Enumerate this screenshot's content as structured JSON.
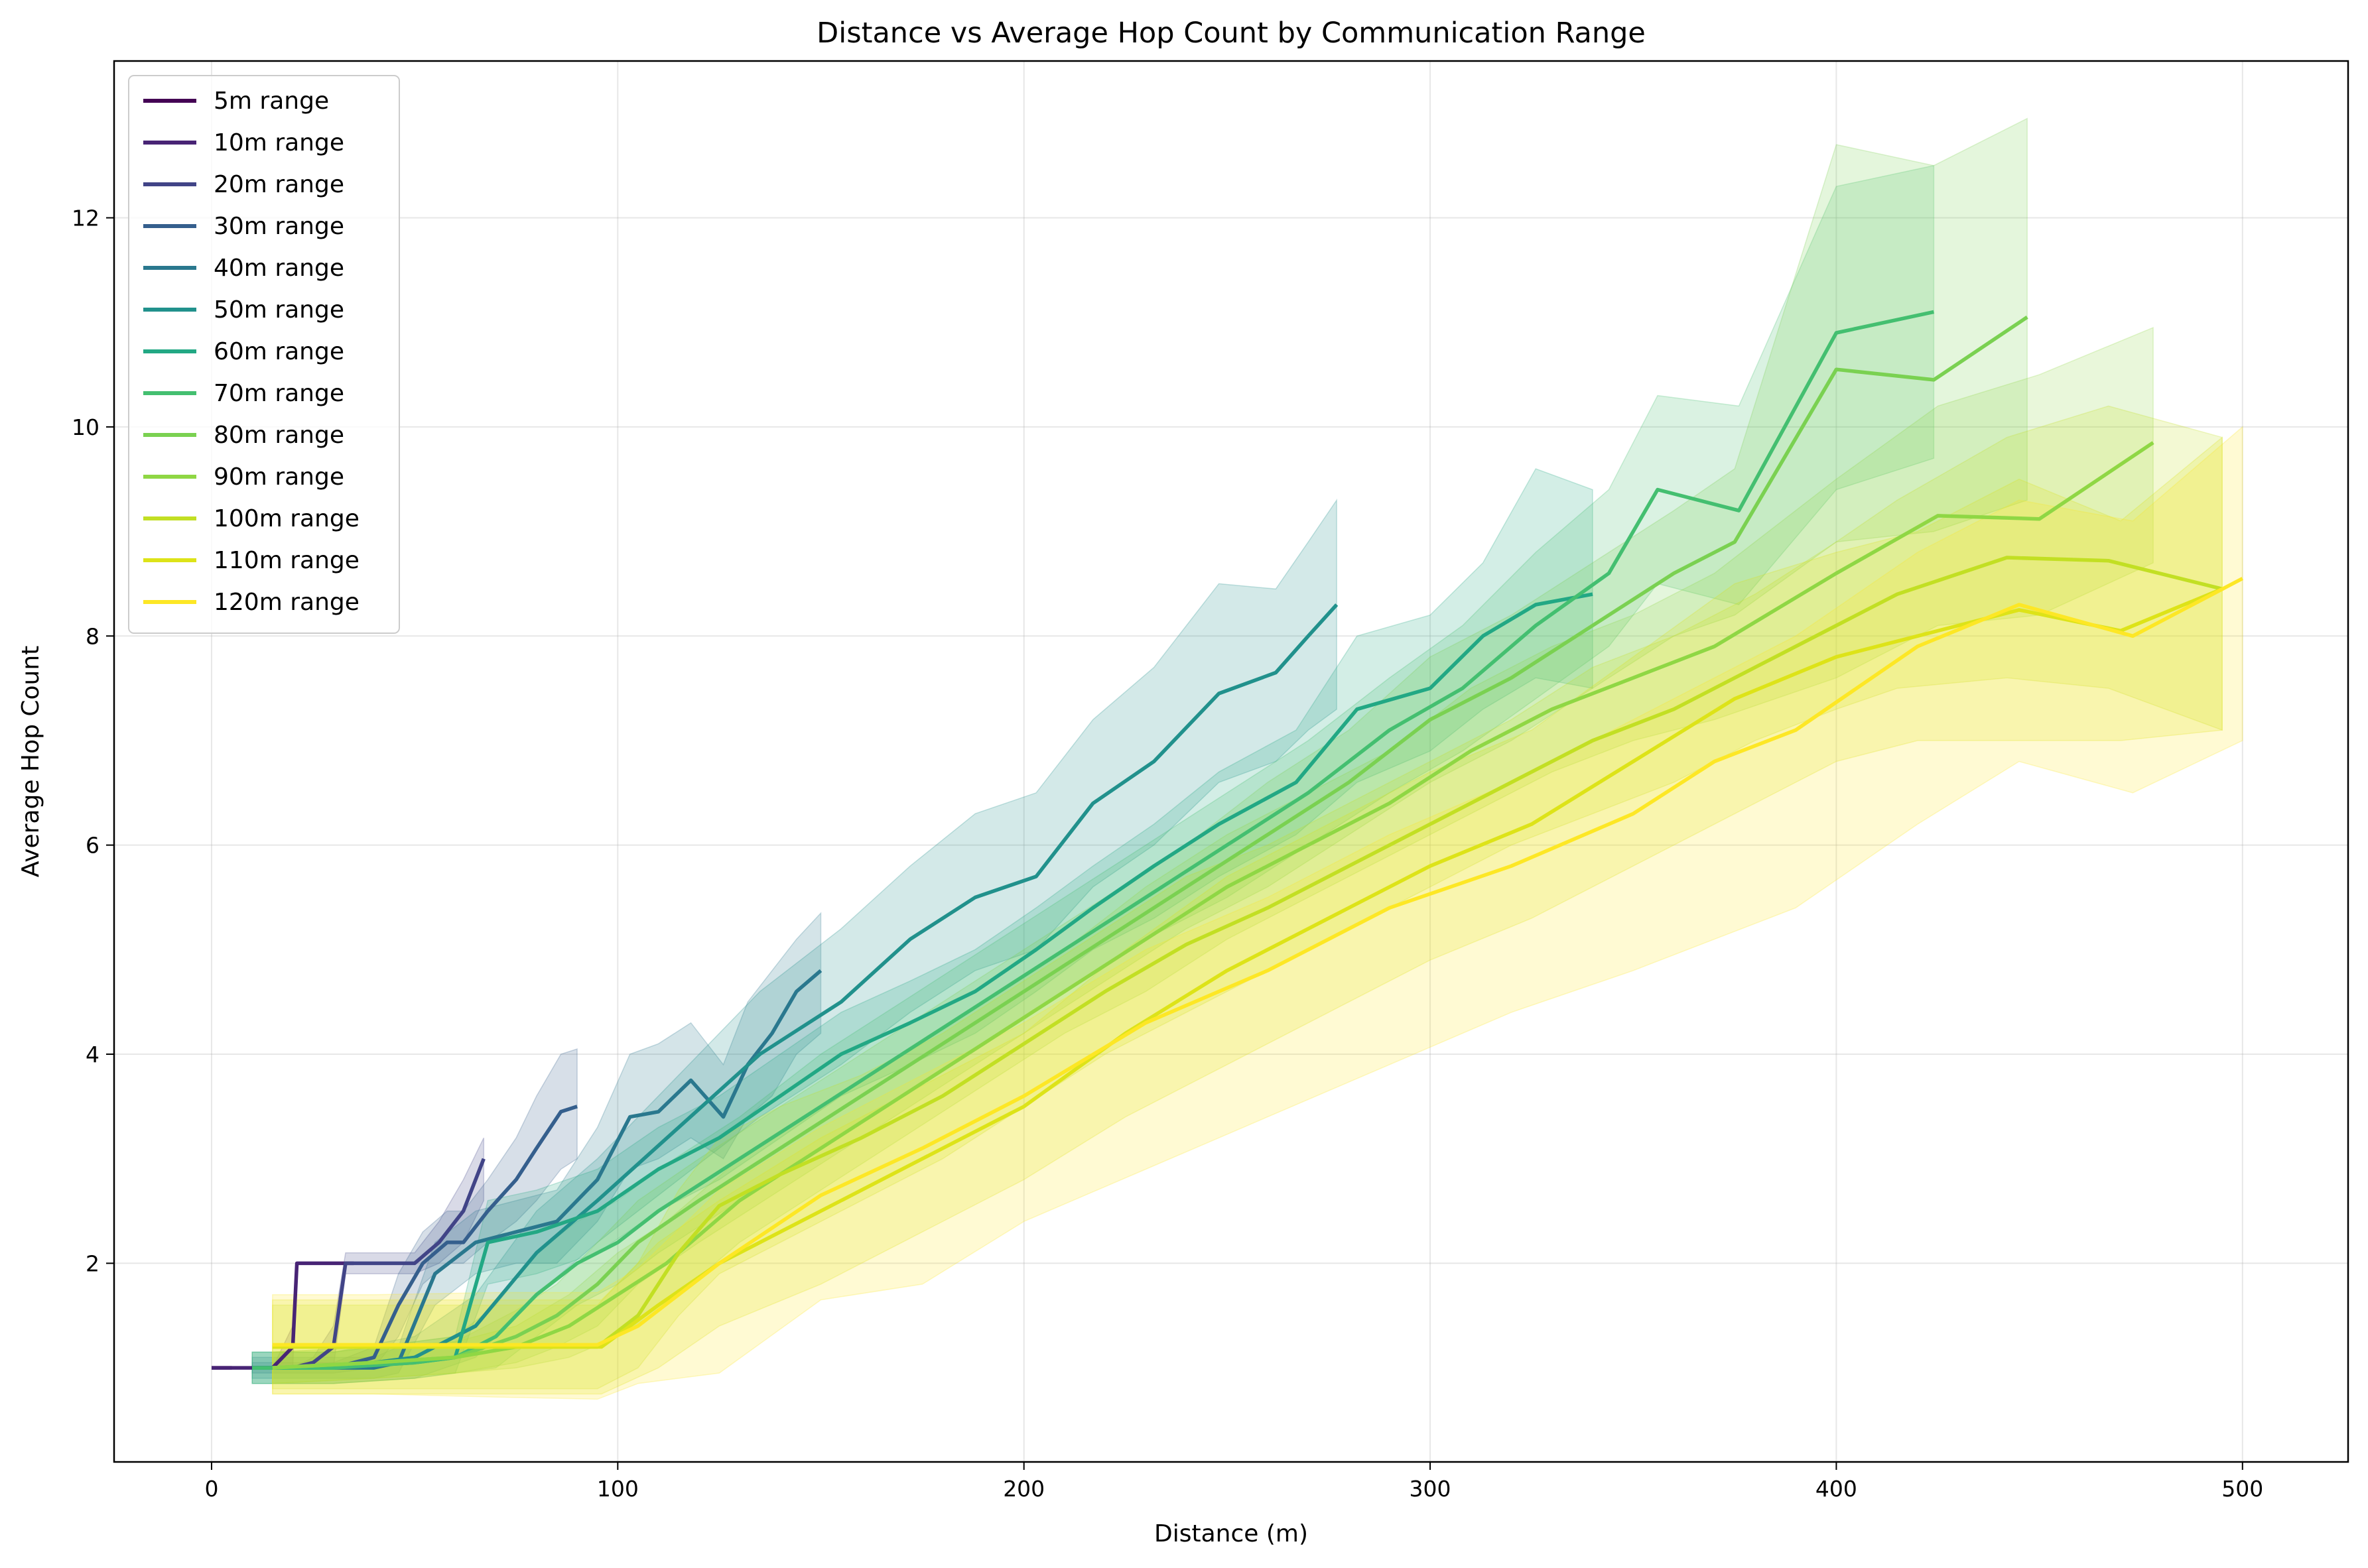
{
  "chart_data": {
    "type": "line",
    "title": "Distance vs Average Hop Count by Communication Range",
    "xlabel": "Distance (m)",
    "ylabel": "Average Hop Count",
    "xlim": [
      -24,
      526
    ],
    "ylim": [
      0.1,
      13.5
    ],
    "xticks": [
      0,
      100,
      200,
      300,
      400,
      500
    ],
    "yticks": [
      2,
      4,
      6,
      8,
      10,
      12
    ],
    "grid": true,
    "legend_position": "top-left",
    "series": [
      {
        "name": "5m range",
        "color": "#440154",
        "x": [
          0,
          5
        ],
        "y": [
          1,
          1
        ],
        "lower": [
          1,
          1
        ],
        "upper": [
          1,
          1
        ]
      },
      {
        "name": "10m range",
        "color": "#482475",
        "x": [
          0,
          5,
          10,
          15,
          20,
          21,
          25,
          30,
          35
        ],
        "y": [
          1,
          1,
          1,
          1,
          1.2,
          2,
          2,
          2,
          2
        ],
        "lower": [
          1,
          1,
          1,
          1,
          1,
          2,
          2,
          2,
          2
        ],
        "upper": [
          1,
          1,
          1,
          1,
          1.4,
          2,
          2,
          2,
          2
        ]
      },
      {
        "name": "20m range",
        "color": "#414487",
        "x": [
          10,
          15,
          20,
          25,
          30,
          33,
          38,
          44,
          50,
          56,
          62,
          67
        ],
        "y": [
          1,
          1,
          1,
          1.05,
          1.2,
          2,
          2,
          2,
          2,
          2.2,
          2.5,
          3
        ],
        "lower": [
          1,
          1,
          1,
          1,
          1,
          1.9,
          1.9,
          1.9,
          1.9,
          2,
          2.2,
          2.6
        ],
        "upper": [
          1,
          1,
          1,
          1.1,
          1.4,
          2.1,
          2.1,
          2.1,
          2.1,
          2.4,
          2.8,
          3.2
        ]
      },
      {
        "name": "30m range",
        "color": "#355f8d",
        "x": [
          10,
          20,
          30,
          40,
          46,
          52,
          58,
          62,
          68,
          75,
          80,
          86,
          90
        ],
        "y": [
          1,
          1,
          1,
          1.1,
          1.6,
          2,
          2.2,
          2.2,
          2.5,
          2.8,
          3.1,
          3.45,
          3.5
        ],
        "lower": [
          0.95,
          0.95,
          0.95,
          1,
          1.3,
          1.8,
          2,
          2,
          2.2,
          2.4,
          2.6,
          2.9,
          3
        ],
        "upper": [
          1.05,
          1.05,
          1.05,
          1.2,
          1.9,
          2.3,
          2.5,
          2.5,
          2.8,
          3.2,
          3.6,
          4,
          4.05
        ]
      },
      {
        "name": "40m range",
        "color": "#2a788e",
        "x": [
          10,
          20,
          30,
          40,
          46,
          55,
          65,
          75,
          85,
          95,
          103,
          110,
          118,
          126,
          132,
          138,
          144,
          150
        ],
        "y": [
          1,
          1,
          1,
          1,
          1.05,
          1.9,
          2.2,
          2.3,
          2.4,
          2.8,
          3.4,
          3.45,
          3.75,
          3.4,
          3.9,
          4.2,
          4.6,
          4.8
        ],
        "lower": [
          0.9,
          0.9,
          0.9,
          0.9,
          0.95,
          1.6,
          1.9,
          2,
          2,
          2.4,
          2.9,
          3,
          3.2,
          3,
          3.4,
          3.6,
          4,
          4.2
        ],
        "upper": [
          1.1,
          1.1,
          1.1,
          1.1,
          1.2,
          2.2,
          2.5,
          2.6,
          2.7,
          3.3,
          4,
          4.1,
          4.3,
          3.9,
          4.5,
          4.8,
          5.1,
          5.35
        ]
      },
      {
        "name": "50m range",
        "color": "#21918c",
        "x": [
          10,
          30,
          50,
          65,
          80,
          95,
          115,
          135,
          155,
          172,
          188,
          203,
          217,
          232,
          248,
          262,
          270,
          277
        ],
        "y": [
          1,
          1,
          1.1,
          1.4,
          2.1,
          2.6,
          3.3,
          4.0,
          4.5,
          5.1,
          5.5,
          5.7,
          6.4,
          6.8,
          7.45,
          7.65,
          8.0,
          8.3
        ],
        "lower": [
          0.85,
          0.85,
          0.9,
          1.1,
          1.7,
          2.2,
          2.8,
          3.4,
          3.9,
          4.4,
          4.8,
          5.0,
          5.6,
          6.0,
          6.6,
          6.8,
          7.1,
          7.3
        ],
        "upper": [
          1.15,
          1.15,
          1.3,
          1.7,
          2.5,
          3.0,
          3.8,
          4.6,
          5.2,
          5.8,
          6.3,
          6.5,
          7.2,
          7.7,
          8.5,
          8.45,
          8.9,
          9.3
        ]
      },
      {
        "name": "60m range",
        "color": "#22a884",
        "x": [
          10,
          30,
          50,
          60,
          68,
          80,
          95,
          110,
          125,
          140,
          155,
          172,
          188,
          203,
          217,
          232,
          248,
          267,
          282,
          300,
          313,
          326,
          340
        ],
        "y": [
          1,
          1,
          1.05,
          1.1,
          2.2,
          2.3,
          2.5,
          2.9,
          3.2,
          3.6,
          4.0,
          4.3,
          4.6,
          5.0,
          5.4,
          5.8,
          6.2,
          6.6,
          7.3,
          7.5,
          8.0,
          8.3,
          8.4
        ],
        "lower": [
          0.85,
          0.85,
          0.9,
          0.95,
          1.8,
          1.9,
          2.1,
          2.5,
          2.8,
          3.2,
          3.6,
          3.9,
          4.2,
          4.6,
          5.0,
          5.3,
          5.7,
          6.1,
          6.6,
          6.9,
          7.3,
          7.6,
          7.5
        ],
        "upper": [
          1.15,
          1.15,
          1.25,
          1.3,
          2.6,
          2.7,
          2.9,
          3.3,
          3.6,
          4.0,
          4.4,
          4.7,
          5.0,
          5.4,
          5.8,
          6.2,
          6.7,
          7.1,
          8.0,
          8.2,
          8.7,
          9.6,
          9.4
        ]
      },
      {
        "name": "70m range",
        "color": "#44bf70",
        "x": [
          10,
          30,
          50,
          60,
          70,
          80,
          90,
          100,
          110,
          130,
          150,
          170,
          190,
          210,
          230,
          250,
          270,
          290,
          308,
          326,
          344,
          356,
          376,
          400,
          424
        ],
        "y": [
          1,
          1,
          1.05,
          1.1,
          1.3,
          1.7,
          2.0,
          2.2,
          2.5,
          3.0,
          3.5,
          4.0,
          4.5,
          5.0,
          5.5,
          6.0,
          6.5,
          7.1,
          7.5,
          8.1,
          8.6,
          9.4,
          9.2,
          10.9,
          11.1
        ],
        "lower": [
          0.85,
          0.85,
          0.9,
          0.95,
          1.0,
          1.3,
          1.6,
          1.8,
          2.1,
          2.6,
          3.1,
          3.6,
          4.1,
          4.6,
          5.1,
          5.5,
          6.0,
          6.5,
          6.9,
          7.4,
          7.9,
          8.5,
          8.3,
          9.4,
          9.7
        ],
        "upper": [
          1.15,
          1.15,
          1.25,
          1.3,
          1.6,
          2.1,
          2.4,
          2.6,
          2.9,
          3.4,
          4.0,
          4.5,
          5.0,
          5.5,
          6.0,
          6.5,
          7.0,
          7.6,
          8.1,
          8.8,
          9.4,
          10.3,
          10.2,
          12.3,
          12.5
        ]
      },
      {
        "name": "80m range",
        "color": "#7ad151",
        "x": [
          15,
          40,
          60,
          75,
          85,
          95,
          105,
          120,
          140,
          160,
          180,
          200,
          220,
          240,
          260,
          280,
          300,
          320,
          340,
          360,
          375,
          400,
          424,
          447
        ],
        "y": [
          1,
          1.05,
          1.1,
          1.3,
          1.5,
          1.8,
          2.2,
          2.6,
          3.1,
          3.6,
          4.1,
          4.6,
          5.1,
          5.6,
          6.1,
          6.6,
          7.2,
          7.6,
          8.1,
          8.6,
          8.9,
          10.55,
          10.45,
          11.05
        ],
        "lower": [
          0.85,
          0.9,
          0.95,
          1.05,
          1.2,
          1.4,
          1.8,
          2.2,
          2.7,
          3.2,
          3.7,
          4.2,
          4.7,
          5.2,
          5.6,
          6.1,
          6.6,
          7.0,
          7.5,
          8.0,
          8.2,
          8.9,
          9.0,
          9.3
        ],
        "upper": [
          1.15,
          1.2,
          1.25,
          1.55,
          1.8,
          2.2,
          2.6,
          3.0,
          3.5,
          4.0,
          4.5,
          5.0,
          5.5,
          6.0,
          6.6,
          7.1,
          7.8,
          8.2,
          8.7,
          9.2,
          9.6,
          12.7,
          12.5,
          12.95
        ]
      },
      {
        "name": "90m range",
        "color": "#8fd744",
        "x": [
          15,
          40,
          60,
          75,
          88,
          100,
          112,
          130,
          150,
          170,
          190,
          210,
          230,
          250,
          270,
          290,
          310,
          330,
          350,
          370,
          400,
          425,
          450,
          478
        ],
        "y": [
          1,
          1.05,
          1.1,
          1.2,
          1.4,
          1.7,
          2.0,
          2.6,
          3.1,
          3.6,
          4.1,
          4.6,
          5.1,
          5.6,
          6.0,
          6.4,
          6.9,
          7.3,
          7.6,
          7.9,
          8.6,
          9.15,
          9.12,
          9.85
        ],
        "lower": [
          0.85,
          0.9,
          0.95,
          1.0,
          1.1,
          1.3,
          1.6,
          2.2,
          2.7,
          3.2,
          3.7,
          4.2,
          4.6,
          5.1,
          5.5,
          5.9,
          6.3,
          6.7,
          7.0,
          7.2,
          7.6,
          8.1,
          8.2,
          8.7
        ],
        "upper": [
          1.15,
          1.2,
          1.25,
          1.4,
          1.7,
          2.1,
          2.4,
          3.0,
          3.5,
          4.0,
          4.5,
          5.0,
          5.6,
          6.1,
          6.5,
          6.9,
          7.5,
          7.9,
          8.2,
          8.6,
          9.5,
          10.2,
          10.5,
          10.95
        ]
      },
      {
        "name": "100m range",
        "color": "#c2df23",
        "x": [
          15,
          40,
          60,
          80,
          95,
          105,
          115,
          125,
          140,
          160,
          180,
          200,
          220,
          240,
          260,
          280,
          300,
          320,
          340,
          360,
          380,
          400,
          415,
          442,
          467,
          495
        ],
        "y": [
          1.2,
          1.2,
          1.2,
          1.2,
          1.2,
          1.5,
          2.1,
          2.55,
          2.85,
          3.2,
          3.6,
          4.1,
          4.6,
          5.05,
          5.4,
          5.8,
          6.2,
          6.6,
          7.0,
          7.3,
          7.7,
          8.1,
          8.4,
          8.75,
          8.72,
          8.45
        ],
        "lower": [
          0.8,
          0.8,
          0.8,
          0.8,
          0.8,
          1.0,
          1.5,
          1.9,
          2.2,
          2.6,
          3.0,
          3.5,
          4.0,
          4.4,
          4.8,
          5.2,
          5.6,
          6.0,
          6.3,
          6.6,
          7.0,
          7.3,
          7.5,
          7.6,
          7.5,
          7.1
        ],
        "upper": [
          1.6,
          1.6,
          1.6,
          1.6,
          1.6,
          2.0,
          2.7,
          3.2,
          3.5,
          3.8,
          4.2,
          4.7,
          5.2,
          5.7,
          6.0,
          6.4,
          6.8,
          7.2,
          7.7,
          8.0,
          8.4,
          8.9,
          9.3,
          9.9,
          10.2,
          9.9
        ]
      },
      {
        "name": "110m range",
        "color": "#dde318",
        "x": [
          15,
          40,
          60,
          80,
          96,
          110,
          125,
          150,
          175,
          200,
          225,
          250,
          275,
          300,
          325,
          350,
          375,
          400,
          420,
          445,
          470,
          495
        ],
        "y": [
          1.2,
          1.2,
          1.2,
          1.2,
          1.2,
          1.6,
          2.0,
          2.5,
          3.0,
          3.5,
          4.2,
          4.8,
          5.3,
          5.8,
          6.2,
          6.8,
          7.4,
          7.8,
          8.0,
          8.25,
          8.05,
          8.45
        ],
        "lower": [
          0.75,
          0.75,
          0.75,
          0.75,
          0.75,
          1.0,
          1.4,
          1.8,
          2.3,
          2.8,
          3.4,
          3.9,
          4.4,
          4.9,
          5.3,
          5.8,
          6.3,
          6.8,
          7.0,
          7.0,
          7.0,
          7.1
        ],
        "upper": [
          1.65,
          1.65,
          1.65,
          1.65,
          1.65,
          2.2,
          2.6,
          3.2,
          3.7,
          4.2,
          5.0,
          5.7,
          6.2,
          6.7,
          7.1,
          7.8,
          8.5,
          8.8,
          9.0,
          9.5,
          9.1,
          9.9
        ]
      },
      {
        "name": "120m range",
        "color": "#fde725",
        "x": [
          15,
          40,
          70,
          95,
          105,
          125,
          150,
          175,
          200,
          230,
          260,
          290,
          320,
          350,
          370,
          390,
          420,
          445,
          473,
          500
        ],
        "y": [
          1.22,
          1.22,
          1.22,
          1.22,
          1.4,
          2.0,
          2.65,
          3.1,
          3.6,
          4.3,
          4.8,
          5.4,
          5.8,
          6.3,
          6.8,
          7.1,
          7.9,
          8.3,
          8.0,
          8.55
        ],
        "lower": [
          0.75,
          0.75,
          0.72,
          0.7,
          0.85,
          0.95,
          1.65,
          1.8,
          2.4,
          2.9,
          3.4,
          3.9,
          4.4,
          4.8,
          5.1,
          5.4,
          6.2,
          6.8,
          6.5,
          7.0
        ],
        "upper": [
          1.7,
          1.7,
          1.72,
          1.72,
          1.95,
          2.7,
          3.3,
          3.8,
          4.3,
          5.0,
          5.5,
          6.1,
          6.6,
          7.2,
          7.6,
          8.0,
          8.8,
          9.3,
          9.1,
          10.0
        ]
      }
    ]
  }
}
